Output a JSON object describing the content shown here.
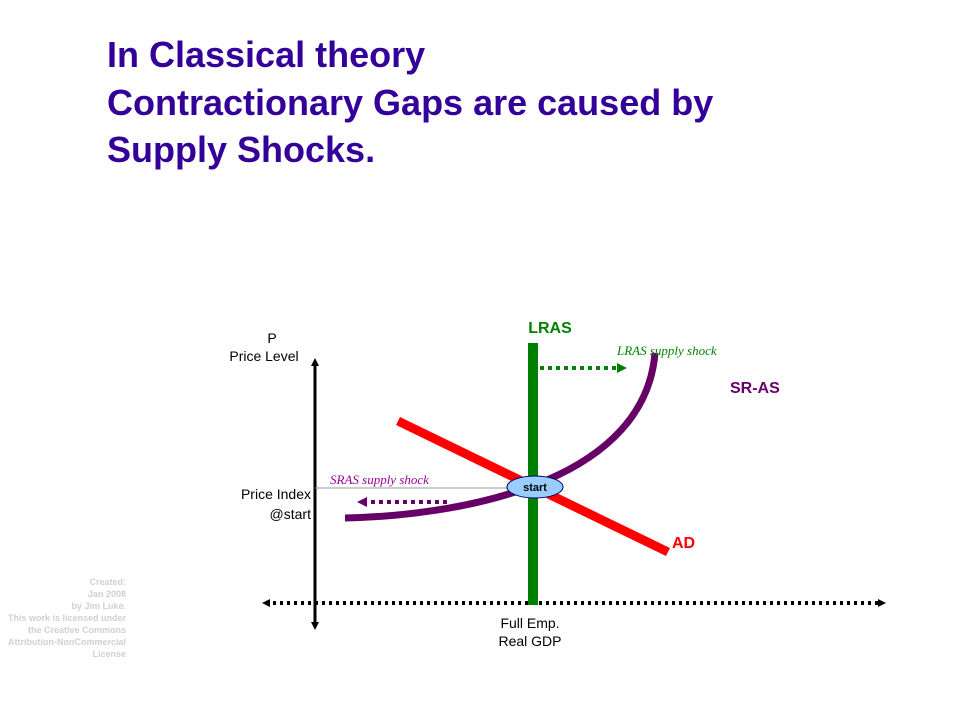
{
  "header": {
    "title": [
      "In Classical theory",
      "Contractionary Gaps are caused by",
      "Supply Shocks."
    ]
  },
  "diagram": {
    "y_axis": [
      "P",
      "Price Level"
    ],
    "x_axis": [
      "Full Emp.",
      "Real GDP"
    ],
    "price_index": [
      "Price Index",
      "@start"
    ],
    "lras": "LRAS",
    "lras_shock": "LRAS supply shock",
    "sras": "SR-AS",
    "sras_shock": "SRAS supply shock",
    "ad": "AD",
    "start": "start"
  },
  "credit": [
    "Created:",
    "Jan 2008",
    "by Jim Luke.",
    "This work is licensed under",
    "the Creative Commons",
    "Attribution-NonCommercial",
    "License"
  ]
}
